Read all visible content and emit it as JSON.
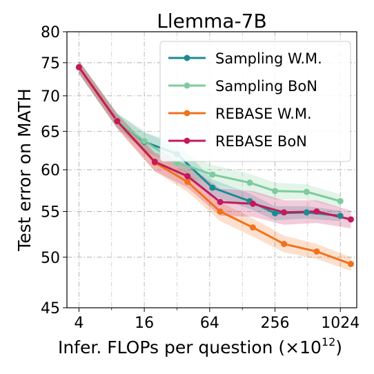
{
  "chart_data": {
    "type": "line",
    "title": "Llemma-7B",
    "xlabel_main": "Infer. FLOPs per question (×10",
    "xlabel_sup": "12",
    "xlabel_close": ")",
    "ylabel": "Test error on MATH",
    "xscale": "log2",
    "xlim": [
      3.1,
      1450
    ],
    "ylim": [
      45,
      80
    ],
    "yscale": "log",
    "x_ticks": [
      4,
      16,
      64,
      256,
      1024
    ],
    "x_tick_labels": [
      "4",
      "16",
      "64",
      "256",
      "1024"
    ],
    "y_ticks": [
      45,
      50,
      55,
      60,
      65,
      70,
      75,
      80
    ],
    "y_tick_labels": [
      "45",
      "50",
      "55",
      "60",
      "65",
      "70",
      "75",
      "80"
    ],
    "grid": true,
    "legend_position": "top-right",
    "series": [
      {
        "name": "Sampling W.M.",
        "color": "#1a8b91",
        "x": [
          4,
          9,
          16,
          32,
          68,
          150,
          256,
          500,
          1024
        ],
        "y": [
          74.3,
          66.5,
          63.6,
          62.0,
          57.8,
          56.2,
          54.8,
          54.9,
          54.5
        ],
        "band": [
          1.0,
          1.0,
          1.2,
          1.5,
          1.0,
          0.9,
          0.8,
          0.7,
          0.6
        ]
      },
      {
        "name": "Sampling BoN",
        "color": "#7ecb9d",
        "x": [
          4,
          9,
          16,
          32,
          68,
          150,
          256,
          500,
          1024
        ],
        "y": [
          74.3,
          66.5,
          63.7,
          60.9,
          59.4,
          58.4,
          57.4,
          57.3,
          56.2
        ],
        "band": [
          1.0,
          1.0,
          1.4,
          1.5,
          1.2,
          1.1,
          1.0,
          0.9,
          0.8
        ]
      },
      {
        "name": "REBASE W.M.",
        "color": "#f2711c",
        "x": [
          4,
          9,
          20,
          40,
          80,
          160,
          310,
          620,
          1280
        ],
        "y": [
          74.3,
          66.4,
          60.9,
          58.5,
          55.0,
          53.2,
          51.4,
          50.6,
          49.3
        ],
        "band": [
          1.0,
          1.0,
          1.1,
          1.2,
          1.1,
          1.0,
          0.9,
          0.8,
          0.7
        ]
      },
      {
        "name": "REBASE BoN",
        "color": "#c5185d",
        "x": [
          4,
          9,
          20,
          40,
          80,
          160,
          310,
          620,
          1280
        ],
        "y": [
          74.3,
          66.4,
          61.0,
          59.2,
          56.1,
          55.9,
          54.9,
          55.0,
          54.1
        ],
        "band": [
          1.0,
          1.0,
          1.2,
          1.4,
          1.6,
          1.5,
          1.4,
          1.3,
          1.0
        ]
      }
    ]
  }
}
